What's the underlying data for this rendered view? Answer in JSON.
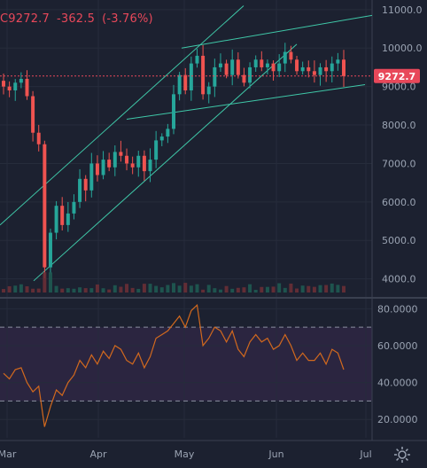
{
  "header": {
    "price": "C9272.7",
    "change": "-362.5",
    "change_pct": "(-3.76%)"
  },
  "price_tag": "9272.7",
  "colors": {
    "bg": "#1c2130",
    "up": "#26a69a",
    "down": "#ef5350",
    "rsi": "#d2691e",
    "rsi_band": "#2b2540",
    "channel": "#3fc8a8",
    "price_line": "#e8485a",
    "grid": "#262c3b"
  },
  "chart_data": [
    {
      "type": "candlestick",
      "x_ticks": [
        "Mar",
        "Apr",
        "May",
        "Jun",
        "Jul"
      ],
      "y_ticks": [
        "11000.0",
        "10000.0",
        "9000.0",
        "8000.0",
        "7000.0",
        "6000.0",
        "5000.0",
        "4000.0"
      ],
      "ylim": [
        3600,
        11250
      ],
      "close_path": [
        9000,
        8900,
        9100,
        9200,
        8750,
        7800,
        7500,
        4300,
        5200,
        5900,
        5400,
        5700,
        6000,
        6600,
        6300,
        7000,
        6700,
        7100,
        6900,
        7300,
        7200,
        7000,
        6900,
        7200,
        6800,
        7100,
        7600,
        7700,
        7900,
        8800,
        9300,
        8900,
        9600,
        9800,
        8800,
        9000,
        9500,
        9600,
        9300,
        9700,
        9300,
        9100,
        9500,
        9700,
        9500,
        9600,
        9400,
        9600,
        9900,
        9700,
        9400,
        9500,
        9400,
        9300,
        9500,
        9400,
        9600,
        9700,
        9272.7
      ],
      "volume": "shown as small bars along the bottom of the price pane"
    },
    {
      "type": "line",
      "name": "RSI",
      "y_ticks": [
        "80.0000",
        "60.0000",
        "40.0000",
        "20.0000"
      ],
      "ylim": [
        10,
        84
      ],
      "bands": [
        30,
        70
      ],
      "values": [
        45,
        42,
        47,
        48,
        40,
        35,
        38,
        16,
        27,
        36,
        33,
        40,
        44,
        52,
        48,
        55,
        50,
        57,
        53,
        60,
        58,
        52,
        50,
        56,
        48,
        54,
        64,
        66,
        68,
        72,
        76,
        70,
        79,
        82,
        60,
        64,
        70,
        68,
        62,
        68,
        58,
        54,
        62,
        66,
        62,
        64,
        58,
        60,
        66,
        60,
        52,
        56,
        52,
        52,
        56,
        50,
        58,
        56,
        47
      ]
    }
  ]
}
